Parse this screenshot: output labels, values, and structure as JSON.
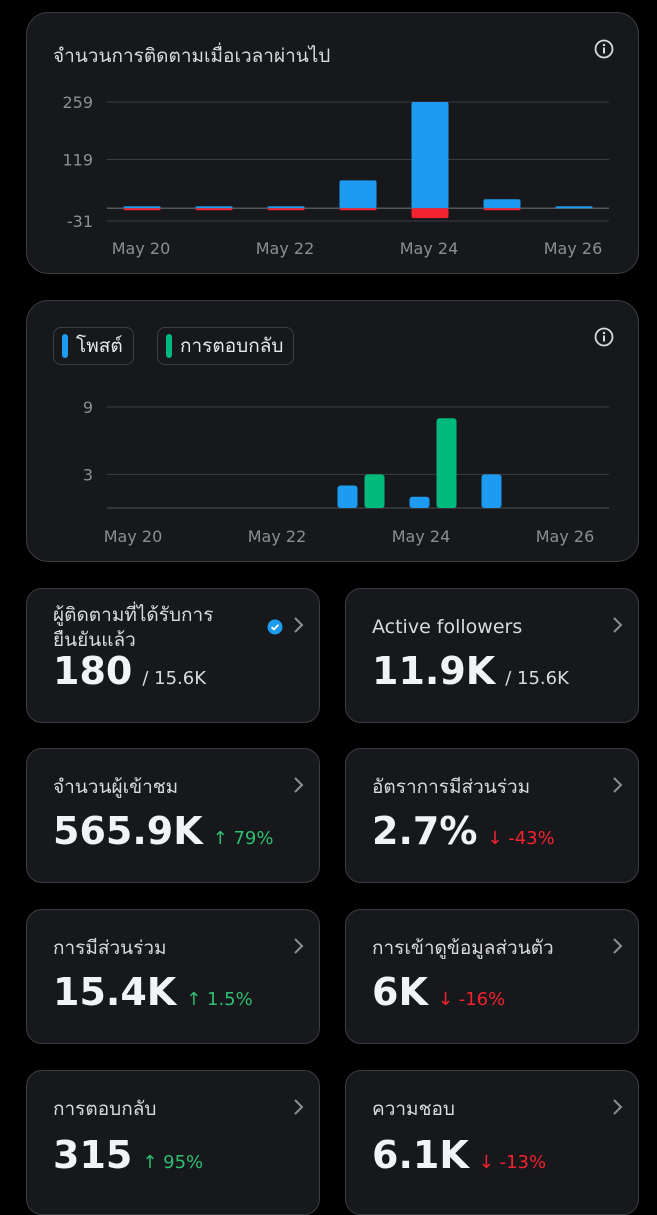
{
  "colors": {
    "blue": "#1d9bf0",
    "red": "#f4212e",
    "green": "#00ba7c"
  },
  "followers_card": {
    "title": "จำนวนการติดตามเมื่อเวลาผ่านไป",
    "chart_data": {
      "type": "bar",
      "categories": [
        "May 20",
        "May 21",
        "May 22",
        "May 23",
        "May 24",
        "May 25",
        "May 26"
      ],
      "x_tick_labels": [
        "May 20",
        "May 22",
        "May 24",
        "May 26"
      ],
      "y_tick_labels": [
        "259",
        "119",
        "-31"
      ],
      "series": [
        {
          "values": [
            4,
            4,
            4,
            68,
            259,
            22,
            2
          ]
        },
        {
          "values": [
            -2,
            -2,
            -2,
            -2,
            -24,
            -2,
            0
          ]
        }
      ],
      "ylim": [
        -31,
        259
      ],
      "grid": true
    }
  },
  "activity_card": {
    "legend": [
      {
        "label": "โพสต์",
        "color": "#1d9bf0"
      },
      {
        "label": "การตอบกลับ",
        "color": "#00ba7c"
      }
    ],
    "chart_data": {
      "type": "bar",
      "categories": [
        "May 20",
        "May 21",
        "May 22",
        "May 23",
        "May 24",
        "May 25",
        "May 26"
      ],
      "x_tick_labels": [
        "May 20",
        "May 22",
        "May 24",
        "May 26"
      ],
      "y_tick_labels": [
        "9",
        "3"
      ],
      "series": [
        {
          "name": "โพสต์",
          "values": [
            0,
            0,
            0,
            2,
            1,
            3,
            0
          ]
        },
        {
          "name": "การตอบกลับ",
          "values": [
            0,
            0,
            0,
            3,
            8,
            0,
            0
          ]
        }
      ],
      "ylim": [
        0,
        9
      ],
      "grid": true
    }
  },
  "stats": [
    {
      "label": "ผู้ติดตามที่ได้รับการยืนยันแล้ว",
      "value": "180",
      "sub": "/ 15.6K",
      "change": "",
      "dir": "",
      "verified": true
    },
    {
      "label": "Active followers",
      "value": "11.9K",
      "sub": "/ 15.6K",
      "change": "",
      "dir": ""
    },
    {
      "label": "จำนวนผู้เข้าชม",
      "value": "565.9K",
      "sub": "",
      "change": "↑ 79%",
      "dir": "up"
    },
    {
      "label": "อัตราการมีส่วนร่วม",
      "value": "2.7%",
      "sub": "",
      "change": "↓ -43%",
      "dir": "down"
    },
    {
      "label": "การมีส่วนร่วม",
      "value": "15.4K",
      "sub": "",
      "change": "↑ 1.5%",
      "dir": "up"
    },
    {
      "label": "การเข้าดูข้อมูลส่วนตัว",
      "value": "6K",
      "sub": "",
      "change": "↓ -16%",
      "dir": "down"
    },
    {
      "label": "การตอบกลับ",
      "value": "315",
      "sub": "",
      "change": "↑ 95%",
      "dir": "up"
    },
    {
      "label": "ความชอบ",
      "value": "6.1K",
      "sub": "",
      "change": "↓ -13%",
      "dir": "down"
    }
  ]
}
